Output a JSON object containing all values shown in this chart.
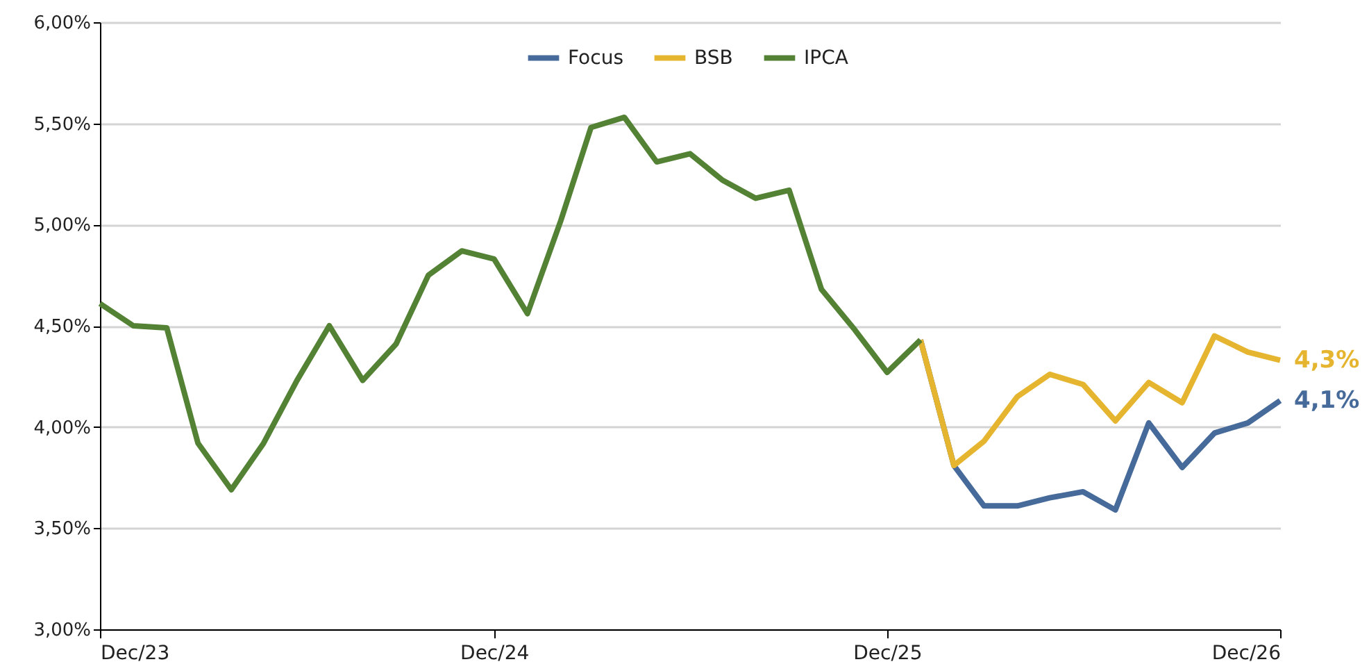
{
  "chart_data": {
    "type": "line",
    "series": [
      {
        "name": "Focus",
        "color": "#466a9a",
        "x": [
          "2026-01",
          "2026-02",
          "2026-03",
          "2026-04",
          "2026-05",
          "2026-06",
          "2026-07",
          "2026-08",
          "2026-09",
          "2026-10",
          "2026-11",
          "2026-12"
        ],
        "values": [
          4.43,
          3.81,
          3.61,
          3.61,
          3.65,
          3.68,
          3.59,
          4.02,
          3.8,
          3.97,
          4.02,
          4.13
        ],
        "value_labels": [
          null,
          null,
          null,
          null,
          null,
          null,
          null,
          null,
          null,
          null,
          null,
          "4,1%"
        ]
      },
      {
        "name": "BSB",
        "color": "#e6b530",
        "x": [
          "2026-01",
          "2026-02",
          "2026-03",
          "2026-04",
          "2026-05",
          "2026-06",
          "2026-07",
          "2026-08",
          "2026-09",
          "2026-10",
          "2026-11",
          "2026-12"
        ],
        "values": [
          4.43,
          3.81,
          3.93,
          4.15,
          4.26,
          4.21,
          4.03,
          4.22,
          4.12,
          4.45,
          4.37,
          4.33
        ],
        "value_labels": [
          null,
          null,
          null,
          null,
          null,
          null,
          null,
          null,
          null,
          null,
          null,
          "4,3%"
        ]
      },
      {
        "name": "IPCA",
        "color": "#548235",
        "x": [
          "2023-12",
          "2024-01",
          "2024-02",
          "2024-03",
          "2024-04",
          "2024-05",
          "2024-06",
          "2024-07",
          "2024-08",
          "2024-09",
          "2024-10",
          "2024-11",
          "2024-12",
          "2025-01",
          "2025-02",
          "2025-03",
          "2025-04",
          "2025-05",
          "2025-06",
          "2025-07",
          "2025-08",
          "2025-09",
          "2025-10",
          "2025-11",
          "2025-12",
          "2026-01"
        ],
        "values": [
          4.61,
          4.5,
          4.49,
          3.92,
          3.69,
          3.92,
          4.23,
          4.5,
          4.23,
          4.41,
          4.75,
          4.87,
          4.83,
          4.56,
          5.02,
          5.48,
          5.53,
          5.31,
          5.35,
          5.22,
          5.13,
          5.17,
          4.68,
          4.48,
          4.27,
          4.43
        ]
      }
    ],
    "xlim": [
      "2023-12",
      "2026-12"
    ],
    "xticks": [
      {
        "value": "2023-12",
        "label": "Dec/23"
      },
      {
        "value": "2024-12",
        "label": "Dec/24"
      },
      {
        "value": "2025-12",
        "label": "Dec/25"
      },
      {
        "value": "2026-12",
        "label": "Dec/26"
      }
    ],
    "ylim": [
      3,
      6
    ],
    "yticks": [
      {
        "value": 3,
        "label": "3,00%"
      },
      {
        "value": 3.5,
        "label": "3,50%"
      },
      {
        "value": 4,
        "label": "4,00%"
      },
      {
        "value": 4.5,
        "label": "4,50%"
      },
      {
        "value": 5,
        "label": "5,00%"
      },
      {
        "value": 5.5,
        "label": "5,50%"
      },
      {
        "value": 6,
        "label": "6,00%"
      }
    ],
    "grid": "y",
    "legend": "top"
  }
}
